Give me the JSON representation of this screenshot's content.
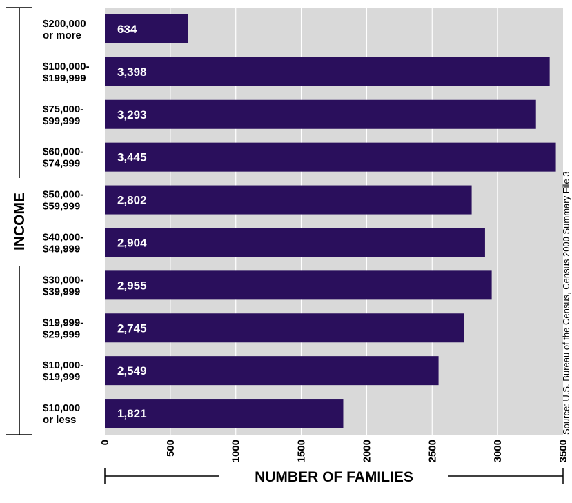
{
  "chart_data": {
    "type": "bar",
    "orientation": "horizontal",
    "categories": [
      [
        "$200,000",
        "or more"
      ],
      [
        "$100,000-",
        "$199,999"
      ],
      [
        "$75,000-",
        "$99,999"
      ],
      [
        "$60,000-",
        "$74,999"
      ],
      [
        "$50,000-",
        "$59,999"
      ],
      [
        "$40,000-",
        "$49,999"
      ],
      [
        "$30,000-",
        "$39,999"
      ],
      [
        "$19,999-",
        "$29,999"
      ],
      [
        "$10,000-",
        "$19,999"
      ],
      [
        "$10,000",
        "or less"
      ]
    ],
    "values": [
      634,
      3398,
      3293,
      3445,
      2802,
      2904,
      2955,
      2745,
      2549,
      1821
    ],
    "value_labels": [
      "634",
      "3,398",
      "3,293",
      "3,445",
      "2,802",
      "2,904",
      "2,955",
      "2,745",
      "2,549",
      "1,821"
    ],
    "xlabel": "NUMBER OF FAMILIES",
    "ylabel": "INCOME",
    "xlim": [
      0,
      3500
    ],
    "xticks": [
      0,
      500,
      1000,
      1500,
      2000,
      2500,
      3000,
      3500
    ],
    "grid": true,
    "source": "Source: U.S. Bureau of the Census, Census 2000 Summary File 3",
    "colors": {
      "bar": "#2a0f5c",
      "plot_background": "#d9d9d9",
      "gridline": "#ffffff",
      "title_partial": "#2a1f63"
    }
  }
}
